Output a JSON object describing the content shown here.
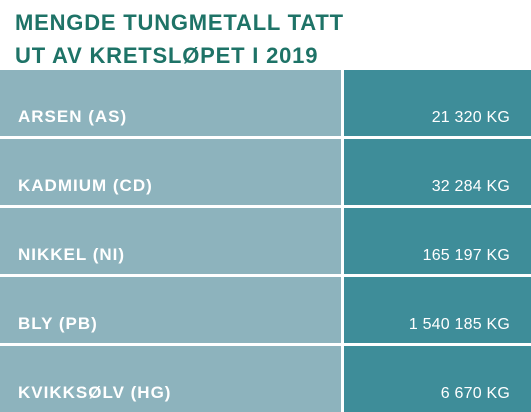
{
  "title": {
    "line1": "MENGDE TUNGMETALL TATT",
    "line2": "UT AV KRETSLØPET I 2019"
  },
  "table": {
    "rows": [
      {
        "name": "ARSEN (AS)",
        "value": "21 320 KG"
      },
      {
        "name": "KADMIUM (CD)",
        "value": "32 284 KG"
      },
      {
        "name": "NIKKEL (NI)",
        "value": "165 197 KG"
      },
      {
        "name": "BLY (PB)",
        "value": "1 540 185 KG"
      },
      {
        "name": "KVIKKSØLV (HG)",
        "value": "6 670 KG"
      }
    ]
  },
  "colors": {
    "title": "#1e7367",
    "name_cell": "#8db3bd",
    "value_cell": "#3e8d99",
    "text": "#ffffff"
  }
}
